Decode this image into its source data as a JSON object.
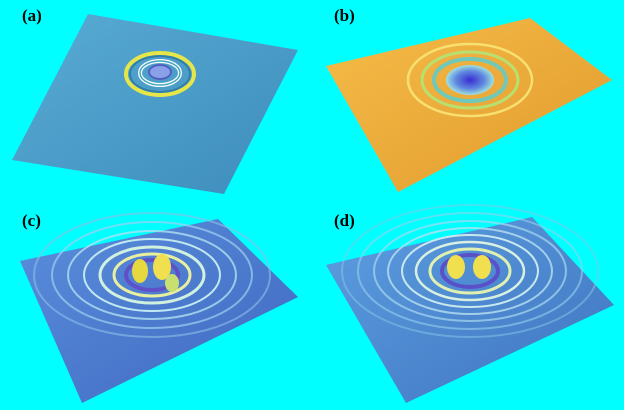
{
  "background_color": "#00ffff",
  "panels": [
    {
      "label": "(a)",
      "surface_color": "#4a9ec8",
      "surface_shade": "#3b86b4",
      "ring_count": 2,
      "peak_count": 0
    },
    {
      "label": "(b)",
      "surface_color": "#f2b13c",
      "surface_shade": "#d99528",
      "ring_count": 4,
      "peak_count": 0
    },
    {
      "label": "(c)",
      "surface_color": "#4d7fd0",
      "surface_shade": "#3d69bb",
      "ring_count": 7,
      "peak_count": 3
    },
    {
      "label": "(d)",
      "surface_color": "#4f8fd0",
      "surface_shade": "#3e78bb",
      "ring_count": 8,
      "peak_count": 2
    }
  ]
}
